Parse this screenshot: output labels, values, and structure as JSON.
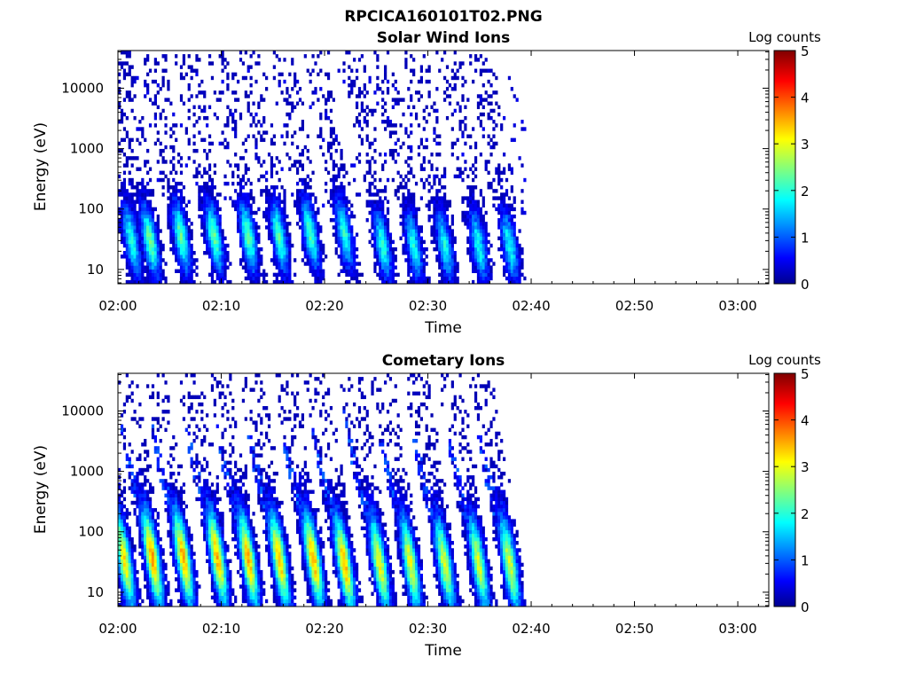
{
  "figure": {
    "title": "RPCICA160101T02.PNG"
  },
  "chart_data": [
    {
      "type": "heatmap",
      "title": "Solar Wind Ions",
      "xlabel": "Time",
      "ylabel": "Energy (eV)",
      "xticks": [
        "02:00",
        "02:10",
        "02:20",
        "02:30",
        "02:40",
        "02:50",
        "03:00"
      ],
      "xlim_minutes": [
        0,
        63
      ],
      "yscale": "log",
      "yticks": [
        10,
        100,
        1000,
        10000
      ],
      "ytick_labels": [
        "10",
        "100",
        "1000",
        "10000"
      ],
      "ylim": [
        5.8,
        42000
      ],
      "colorbar": {
        "label": "Log counts",
        "min": 0,
        "max": 5,
        "ticks": [
          "0",
          "1",
          "2",
          "3",
          "4",
          "5"
        ]
      },
      "data_end_minute": 39.5,
      "bursts": [
        {
          "minute": 1.2,
          "peak_energy": 30,
          "peak_log_counts": 2.0
        },
        {
          "minute": 3.0,
          "peak_energy": 30,
          "peak_log_counts": 2.4
        },
        {
          "minute": 6.0,
          "peak_energy": 35,
          "peak_log_counts": 2.3
        },
        {
          "minute": 9.2,
          "peak_energy": 35,
          "peak_log_counts": 2.3
        },
        {
          "minute": 12.5,
          "peak_energy": 35,
          "peak_log_counts": 2.3
        },
        {
          "minute": 15.5,
          "peak_energy": 35,
          "peak_log_counts": 2.2
        },
        {
          "minute": 18.5,
          "peak_energy": 40,
          "peak_log_counts": 2.2
        },
        {
          "minute": 21.8,
          "peak_energy": 40,
          "peak_log_counts": 2.0
        },
        {
          "minute": 25.5,
          "peak_energy": 25,
          "peak_log_counts": 2.0
        },
        {
          "minute": 28.5,
          "peak_energy": 25,
          "peak_log_counts": 1.9
        },
        {
          "minute": 31.5,
          "peak_energy": 25,
          "peak_log_counts": 1.9
        },
        {
          "minute": 34.8,
          "peak_energy": 25,
          "peak_log_counts": 1.9
        },
        {
          "minute": 37.8,
          "peak_energy": 25,
          "peak_log_counts": 1.9
        }
      ],
      "background_noise_energy_range": [
        80,
        20000
      ],
      "background_log_counts": 0.2
    },
    {
      "type": "heatmap",
      "title": "Cometary Ions",
      "xlabel": "Time",
      "ylabel": "Energy (eV)",
      "xticks": [
        "02:00",
        "02:10",
        "02:20",
        "02:30",
        "02:40",
        "02:50",
        "03:00"
      ],
      "xlim_minutes": [
        0,
        63
      ],
      "yscale": "log",
      "yticks": [
        10,
        100,
        1000,
        10000
      ],
      "ytick_labels": [
        "10",
        "100",
        "1000",
        "10000"
      ],
      "ylim": [
        5.8,
        42000
      ],
      "colorbar": {
        "label": "Log counts",
        "min": 0,
        "max": 5,
        "ticks": [
          "0",
          "1",
          "2",
          "3",
          "4",
          "5"
        ]
      },
      "data_end_minute": 39.5,
      "bursts": [
        {
          "minute": 0.5,
          "peak_energy": 35,
          "peak_log_counts": 3.2
        },
        {
          "minute": 3.2,
          "peak_energy": 38,
          "peak_log_counts": 3.6
        },
        {
          "minute": 6.2,
          "peak_energy": 38,
          "peak_log_counts": 3.5
        },
        {
          "minute": 9.5,
          "peak_energy": 38,
          "peak_log_counts": 3.5
        },
        {
          "minute": 12.5,
          "peak_energy": 35,
          "peak_log_counts": 3.5
        },
        {
          "minute": 15.5,
          "peak_energy": 35,
          "peak_log_counts": 3.4
        },
        {
          "minute": 18.8,
          "peak_energy": 35,
          "peak_log_counts": 3.5
        },
        {
          "minute": 21.8,
          "peak_energy": 30,
          "peak_log_counts": 3.5
        },
        {
          "minute": 25.2,
          "peak_energy": 30,
          "peak_log_counts": 3.1
        },
        {
          "minute": 28.2,
          "peak_energy": 30,
          "peak_log_counts": 3.0
        },
        {
          "minute": 31.5,
          "peak_energy": 30,
          "peak_log_counts": 2.9
        },
        {
          "minute": 34.8,
          "peak_energy": 30,
          "peak_log_counts": 2.9
        },
        {
          "minute": 37.8,
          "peak_energy": 30,
          "peak_log_counts": 2.9
        }
      ],
      "plume_max_energy": [
        5000,
        6000,
        6000,
        6000,
        7000,
        4000,
        3000,
        5000,
        10000,
        5000,
        3500,
        3500,
        7000
      ]
    }
  ],
  "colors": {
    "jet_stops": [
      "#00008f",
      "#0000ff",
      "#00ffff",
      "#ffff00",
      "#ff0000",
      "#800000"
    ]
  }
}
